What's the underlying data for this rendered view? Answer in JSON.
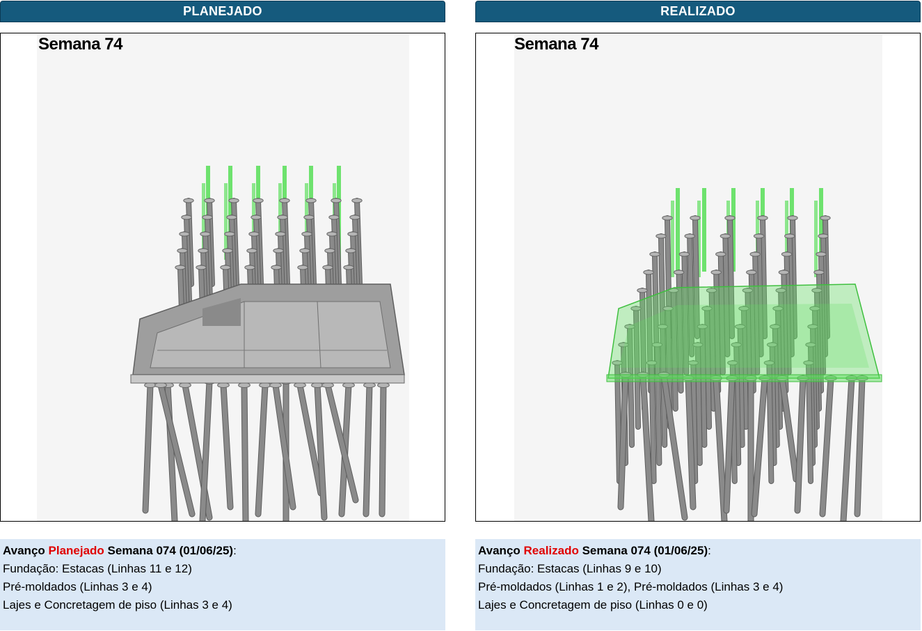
{
  "planned": {
    "header": "PLANEJADO",
    "week_label": "Semana 74",
    "notes": {
      "prefix": "Avanço ",
      "accent": "Planejado",
      "suffix": " Semana 074 (01/06/25)",
      "colon": ":",
      "lines": [
        "Fundação: Estacas (Linhas 11 e 12)",
        "Pré-moldados (Linhas 3 e 4)",
        "Lajes e Concretagem de piso (Linhas 3 e 4)"
      ]
    }
  },
  "actual": {
    "header": "REALIZADO",
    "week_label": "Semana 74",
    "notes": {
      "prefix": "Avanço ",
      "accent": "Realizado",
      "suffix": " Semana 074 (01/06/25)",
      "colon": ":",
      "lines": [
        "Fundação: Estacas (Linhas 9 e 10)",
        "Pré-moldados (Linhas 1 e 2), Pré-moldados (Linhas 3 e 4)",
        "Lajes e Concretagem de piso (Linhas 0 e 0)"
      ]
    }
  },
  "colors": {
    "header_bg": "#155a7d",
    "notes_bg": "#dbe8f6",
    "accent": "#e00000",
    "pile_gray": "#8a8a8a",
    "new_pile_green": "#5fe05f",
    "slab_gray": "#a9a9a9"
  }
}
